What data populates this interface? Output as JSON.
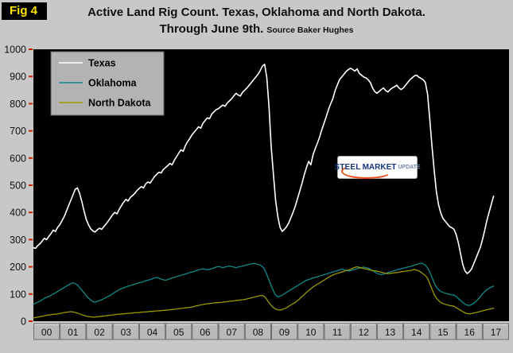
{
  "fig_label": "Fig 4",
  "title": {
    "line1": "Active Land Rig Count. Texas, Oklahoma and North Dakota.",
    "line2_main": "Through June 9th.",
    "line2_source": "Source Baker Hughes"
  },
  "logo": {
    "steel": "STEEL",
    "market": "MARKET",
    "update": "UPDATE"
  },
  "chart_data": {
    "type": "line",
    "title": "Active Land Rig Count. Texas, Oklahoma and North Dakota. Through June 9th.",
    "source": "Baker Hughes",
    "x_unit": "monthly, Jan 2000 - Jun 2017",
    "x_span_months": 216,
    "x_tick_labels": [
      "00",
      "01",
      "02",
      "03",
      "04",
      "05",
      "06",
      "07",
      "08",
      "09",
      "10",
      "11",
      "12",
      "13",
      "14",
      "15",
      "16",
      "17"
    ],
    "ylim": [
      0,
      1000
    ],
    "y_ticks": [
      0,
      100,
      200,
      300,
      400,
      500,
      600,
      700,
      800,
      900,
      1000
    ],
    "plot_bg": "#000000",
    "tick_color": "#cc2200",
    "legend_position": "top-left",
    "grid": false,
    "series": [
      {
        "name": "Texas",
        "color": "#ffffff",
        "values": [
          270,
          268,
          278,
          285,
          295,
          305,
          300,
          312,
          322,
          335,
          330,
          345,
          355,
          370,
          385,
          405,
          425,
          445,
          465,
          485,
          490,
          470,
          440,
          405,
          375,
          355,
          340,
          332,
          328,
          336,
          342,
          338,
          348,
          358,
          368,
          380,
          392,
          400,
          395,
          412,
          425,
          438,
          448,
          442,
          455,
          462,
          470,
          480,
          488,
          495,
          490,
          505,
          512,
          508,
          520,
          532,
          540,
          548,
          545,
          558,
          565,
          572,
          580,
          575,
          592,
          605,
          618,
          630,
          625,
          645,
          660,
          672,
          685,
          695,
          705,
          715,
          710,
          728,
          738,
          748,
          745,
          762,
          770,
          778,
          782,
          788,
          795,
          790,
          802,
          810,
          818,
          828,
          838,
          832,
          828,
          842,
          850,
          858,
          868,
          878,
          888,
          898,
          908,
          922,
          938,
          945,
          895,
          790,
          640,
          540,
          445,
          385,
          345,
          330,
          338,
          348,
          362,
          382,
          402,
          425,
          452,
          480,
          508,
          538,
          565,
          588,
          575,
          612,
          635,
          655,
          678,
          705,
          728,
          752,
          778,
          800,
          818,
          848,
          868,
          888,
          898,
          908,
          918,
          925,
          930,
          926,
          920,
          928,
          912,
          905,
          898,
          895,
          888,
          878,
          858,
          845,
          838,
          845,
          852,
          858,
          848,
          843,
          852,
          858,
          862,
          868,
          858,
          852,
          858,
          868,
          878,
          888,
          895,
          902,
          905,
          898,
          893,
          888,
          878,
          835,
          745,
          645,
          555,
          478,
          428,
          398,
          378,
          368,
          358,
          348,
          344,
          338,
          318,
          288,
          248,
          208,
          185,
          175,
          182,
          192,
          212,
          232,
          252,
          272,
          302,
          335,
          372,
          402,
          432,
          460
        ]
      },
      {
        "name": "Oklahoma",
        "color": "#0e8a8a",
        "values": [
          62,
          66,
          70,
          74,
          79,
          84,
          88,
          91,
          95,
          100,
          104,
          109,
          114,
          119,
          124,
          129,
          134,
          139,
          141,
          138,
          133,
          124,
          114,
          104,
          94,
          85,
          78,
          72,
          70,
          73,
          76,
          79,
          83,
          87,
          91,
          96,
          101,
          106,
          111,
          116,
          120,
          123,
          126,
          129,
          131,
          134,
          136,
          139,
          141,
          143,
          146,
          149,
          151,
          153,
          156,
          159,
          161,
          158,
          155,
          152,
          151,
          153,
          156,
          159,
          161,
          164,
          166,
          169,
          171,
          173,
          176,
          179,
          181,
          183,
          186,
          189,
          191,
          193,
          191,
          189,
          191,
          193,
          196,
          199,
          201,
          199,
          197,
          199,
          201,
          203,
          201,
          199,
          197,
          199,
          201,
          203,
          205,
          207,
          209,
          211,
          213,
          211,
          209,
          206,
          201,
          191,
          171,
          151,
          131,
          111,
          96,
          90,
          92,
          96,
          101,
          106,
          111,
          116,
          121,
          126,
          131,
          136,
          141,
          146,
          151,
          153,
          156,
          159,
          161,
          163,
          166,
          169,
          171,
          173,
          176,
          179,
          181,
          183,
          186,
          189,
          191,
          189,
          187,
          185,
          186,
          189,
          191,
          193,
          195,
          197,
          199,
          197,
          195,
          191,
          186,
          181,
          176,
          173,
          171,
          173,
          176,
          179,
          181,
          183,
          186,
          189,
          191,
          193,
          195,
          197,
          199,
          201,
          203,
          206,
          209,
          211,
          213,
          211,
          206,
          196,
          181,
          161,
          141,
          126,
          116,
          109,
          106,
          103,
          101,
          99,
          97,
          96,
          91,
          83,
          76,
          69,
          63,
          59,
          58,
          61,
          66,
          73,
          81,
          91,
          101,
          109,
          116,
          121,
          126,
          129
        ]
      },
      {
        "name": "North Dakota",
        "color": "#999900",
        "values": [
          12,
          14,
          15,
          17,
          18,
          20,
          22,
          23,
          24,
          25,
          26,
          27,
          28,
          30,
          32,
          33,
          34,
          35,
          34,
          32,
          30,
          27,
          24,
          21,
          19,
          17,
          16,
          15,
          15,
          16,
          17,
          18,
          19,
          20,
          21,
          22,
          23,
          24,
          25,
          26,
          27,
          27,
          28,
          29,
          29,
          30,
          31,
          32,
          32,
          33,
          34,
          34,
          35,
          36,
          36,
          37,
          38,
          38,
          39,
          40,
          40,
          41,
          42,
          43,
          44,
          45,
          46,
          47,
          48,
          49,
          50,
          51,
          52,
          54,
          56,
          58,
          60,
          61,
          63,
          64,
          65,
          66,
          67,
          68,
          68,
          69,
          70,
          71,
          72,
          73,
          74,
          75,
          76,
          77,
          78,
          79,
          80,
          82,
          84,
          86,
          88,
          90,
          92,
          94,
          95,
          90,
          80,
          68,
          58,
          50,
          45,
          42,
          41,
          43,
          46,
          50,
          55,
          60,
          65,
          70,
          76,
          83,
          91,
          98,
          106,
          113,
          119,
          126,
          131,
          136,
          141,
          146,
          151,
          156,
          161,
          166,
          170,
          173,
          176,
          178,
          181,
          183,
          186,
          188,
          191,
          195,
          198,
          200,
          198,
          196,
          194,
          192,
          190,
          188,
          186,
          185,
          184,
          182,
          180,
          178,
          176,
          175,
          176,
          177,
          178,
          179,
          180,
          182,
          183,
          184,
          185,
          186,
          188,
          190,
          188,
          185,
          180,
          174,
          168,
          158,
          138,
          118,
          98,
          85,
          76,
          69,
          65,
          62,
          60,
          58,
          56,
          55,
          50,
          45,
          40,
          35,
          31,
          28,
          27,
          28,
          30,
          32,
          34,
          36,
          38,
          40,
          42,
          44,
          46,
          48
        ]
      }
    ]
  }
}
